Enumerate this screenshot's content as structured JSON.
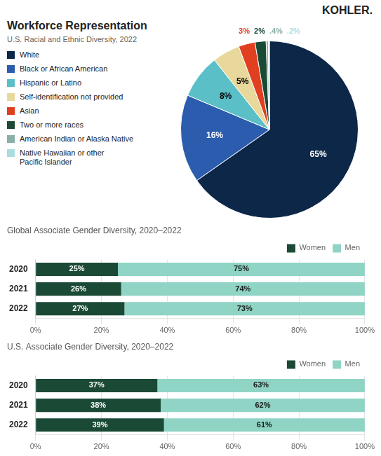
{
  "chart_data": [
    {
      "type": "pie",
      "title": "Workforce Representation",
      "subtitle": "U.S. Racial and Ethnic Diversity, 2022",
      "annotations": [
        "KOHLER."
      ],
      "categories": [
        "White",
        "Black or African American",
        "Hispanic or Latino",
        "Self-identification not provided",
        "Asian",
        "Two or more races",
        "American Indian or Alaska Native",
        "Native Hawaiian or other\nPacific Islander"
      ],
      "values": [
        65,
        16,
        8,
        5,
        3,
        2,
        0.4,
        0.2
      ],
      "value_labels": [
        "65%",
        "16%",
        "8%",
        "5%",
        "3%",
        "2%",
        ".4%",
        ".2%"
      ],
      "colors": [
        "#0d2748",
        "#2b5cad",
        "#5bbfc8",
        "#e8d89b",
        "#e04020",
        "#1a4a35",
        "#8aafa8",
        "#aadde0"
      ],
      "data_labels": true,
      "legend": "left"
    },
    {
      "type": "bar",
      "orientation": "horizontal",
      "stacked": true,
      "title": "Global Associate Gender Diversity, 2020–2022",
      "categories": [
        "2020",
        "2021",
        "2022"
      ],
      "series": [
        {
          "name": "Women",
          "color": "#1a4a35",
          "values": [
            25,
            26,
            27
          ],
          "value_labels": [
            "25%",
            "26%",
            "27%"
          ]
        },
        {
          "name": "Men",
          "color": "#8fd4c4",
          "values": [
            75,
            74,
            73
          ],
          "value_labels": [
            "75%",
            "74%",
            "73%"
          ]
        }
      ],
      "xlim": [
        0,
        100
      ],
      "xticks": [
        {
          "value": 0,
          "label": "0%"
        },
        {
          "value": 20,
          "label": "20%"
        },
        {
          "value": 40,
          "label": "40%"
        },
        {
          "value": 60,
          "label": "60%"
        },
        {
          "value": 80,
          "label": "80%"
        },
        {
          "value": 100,
          "label": "100%"
        }
      ],
      "grid": true,
      "data_labels": true,
      "legend": "upper right"
    },
    {
      "type": "bar",
      "orientation": "horizontal",
      "stacked": true,
      "title": "U.S. Associate Gender Diversity, 2020–2022",
      "categories": [
        "2020",
        "2021",
        "2022"
      ],
      "series": [
        {
          "name": "Women",
          "color": "#1a4a35",
          "values": [
            37,
            38,
            39
          ],
          "value_labels": [
            "37%",
            "38%",
            "39%"
          ]
        },
        {
          "name": "Men",
          "color": "#8fd4c4",
          "values": [
            63,
            62,
            61
          ],
          "value_labels": [
            "63%",
            "62%",
            "61%"
          ]
        }
      ],
      "xlim": [
        0,
        100
      ],
      "xticks": [
        {
          "value": 0,
          "label": "0%"
        },
        {
          "value": 20,
          "label": "20%"
        },
        {
          "value": 40,
          "label": "40%"
        },
        {
          "value": 60,
          "label": "60%"
        },
        {
          "value": 80,
          "label": "80%"
        },
        {
          "value": 100,
          "label": "100%"
        }
      ],
      "grid": true,
      "data_labels": true,
      "legend": "upper right"
    }
  ]
}
